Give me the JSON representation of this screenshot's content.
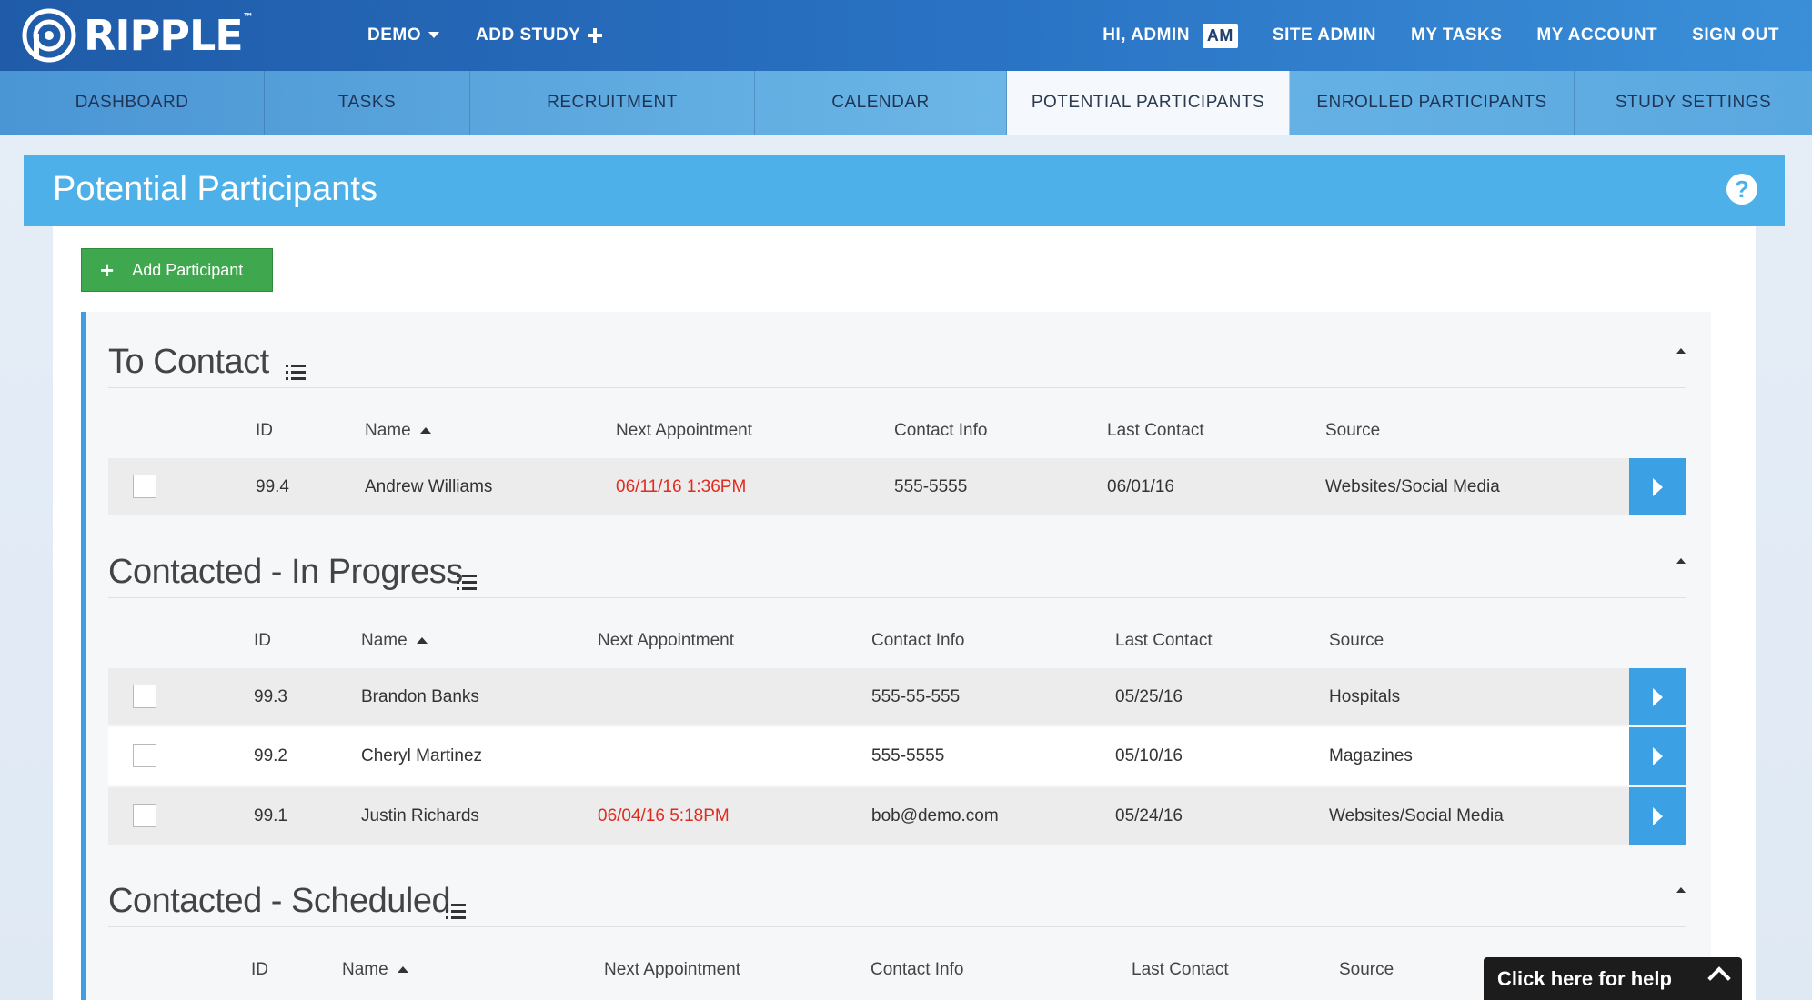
{
  "brand": {
    "name": "RIPPLE",
    "tm": "™"
  },
  "topnav": {
    "demo": "DEMO",
    "add_study": "ADD STUDY",
    "greeting": "HI, ADMIN",
    "initials": "AM",
    "site_admin": "SITE ADMIN",
    "my_tasks": "MY TASKS",
    "my_account": "MY ACCOUNT",
    "sign_out": "SIGN OUT"
  },
  "tabs": [
    "DASHBOARD",
    "TASKS",
    "RECRUITMENT",
    "CALENDAR",
    "POTENTIAL PARTICIPANTS",
    "ENROLLED PARTICIPANTS",
    "STUDY SETTINGS"
  ],
  "active_tab": "POTENTIAL PARTICIPANTS",
  "page": {
    "title": "Potential Participants",
    "help_glyph": "?"
  },
  "add_participant": "Add Participant",
  "columns": {
    "id": "ID",
    "name": "Name",
    "next": "Next Appointment",
    "contact": "Contact Info",
    "last": "Last Contact",
    "source": "Source"
  },
  "sections": [
    {
      "title": "To Contact",
      "rows": [
        {
          "id": "99.4",
          "name": "Andrew Williams",
          "next": "06/11/16 1:36PM",
          "contact": "555-5555",
          "last": "06/01/16",
          "source": "Websites/Social Media"
        }
      ]
    },
    {
      "title": "Contacted - In Progress",
      "rows": [
        {
          "id": "99.3",
          "name": "Brandon Banks",
          "next": "",
          "contact": "555-55-555",
          "last": "05/25/16",
          "source": "Hospitals"
        },
        {
          "id": "99.2",
          "name": "Cheryl Martinez",
          "next": "",
          "contact": "555-5555",
          "last": "05/10/16",
          "source": "Magazines"
        },
        {
          "id": "99.1",
          "name": "Justin Richards",
          "next": "06/04/16 5:18PM",
          "contact": "bob@demo.com",
          "last": "05/24/16",
          "source": "Websites/Social Media"
        }
      ]
    },
    {
      "title": "Contacted - Scheduled",
      "rows": []
    }
  ],
  "help_widget": "Click here for help",
  "colors": {
    "accent": "#4db0e8",
    "add_button": "#3fa84e",
    "alert_red": "#e02b20",
    "action_blue": "#3ca0e4"
  }
}
